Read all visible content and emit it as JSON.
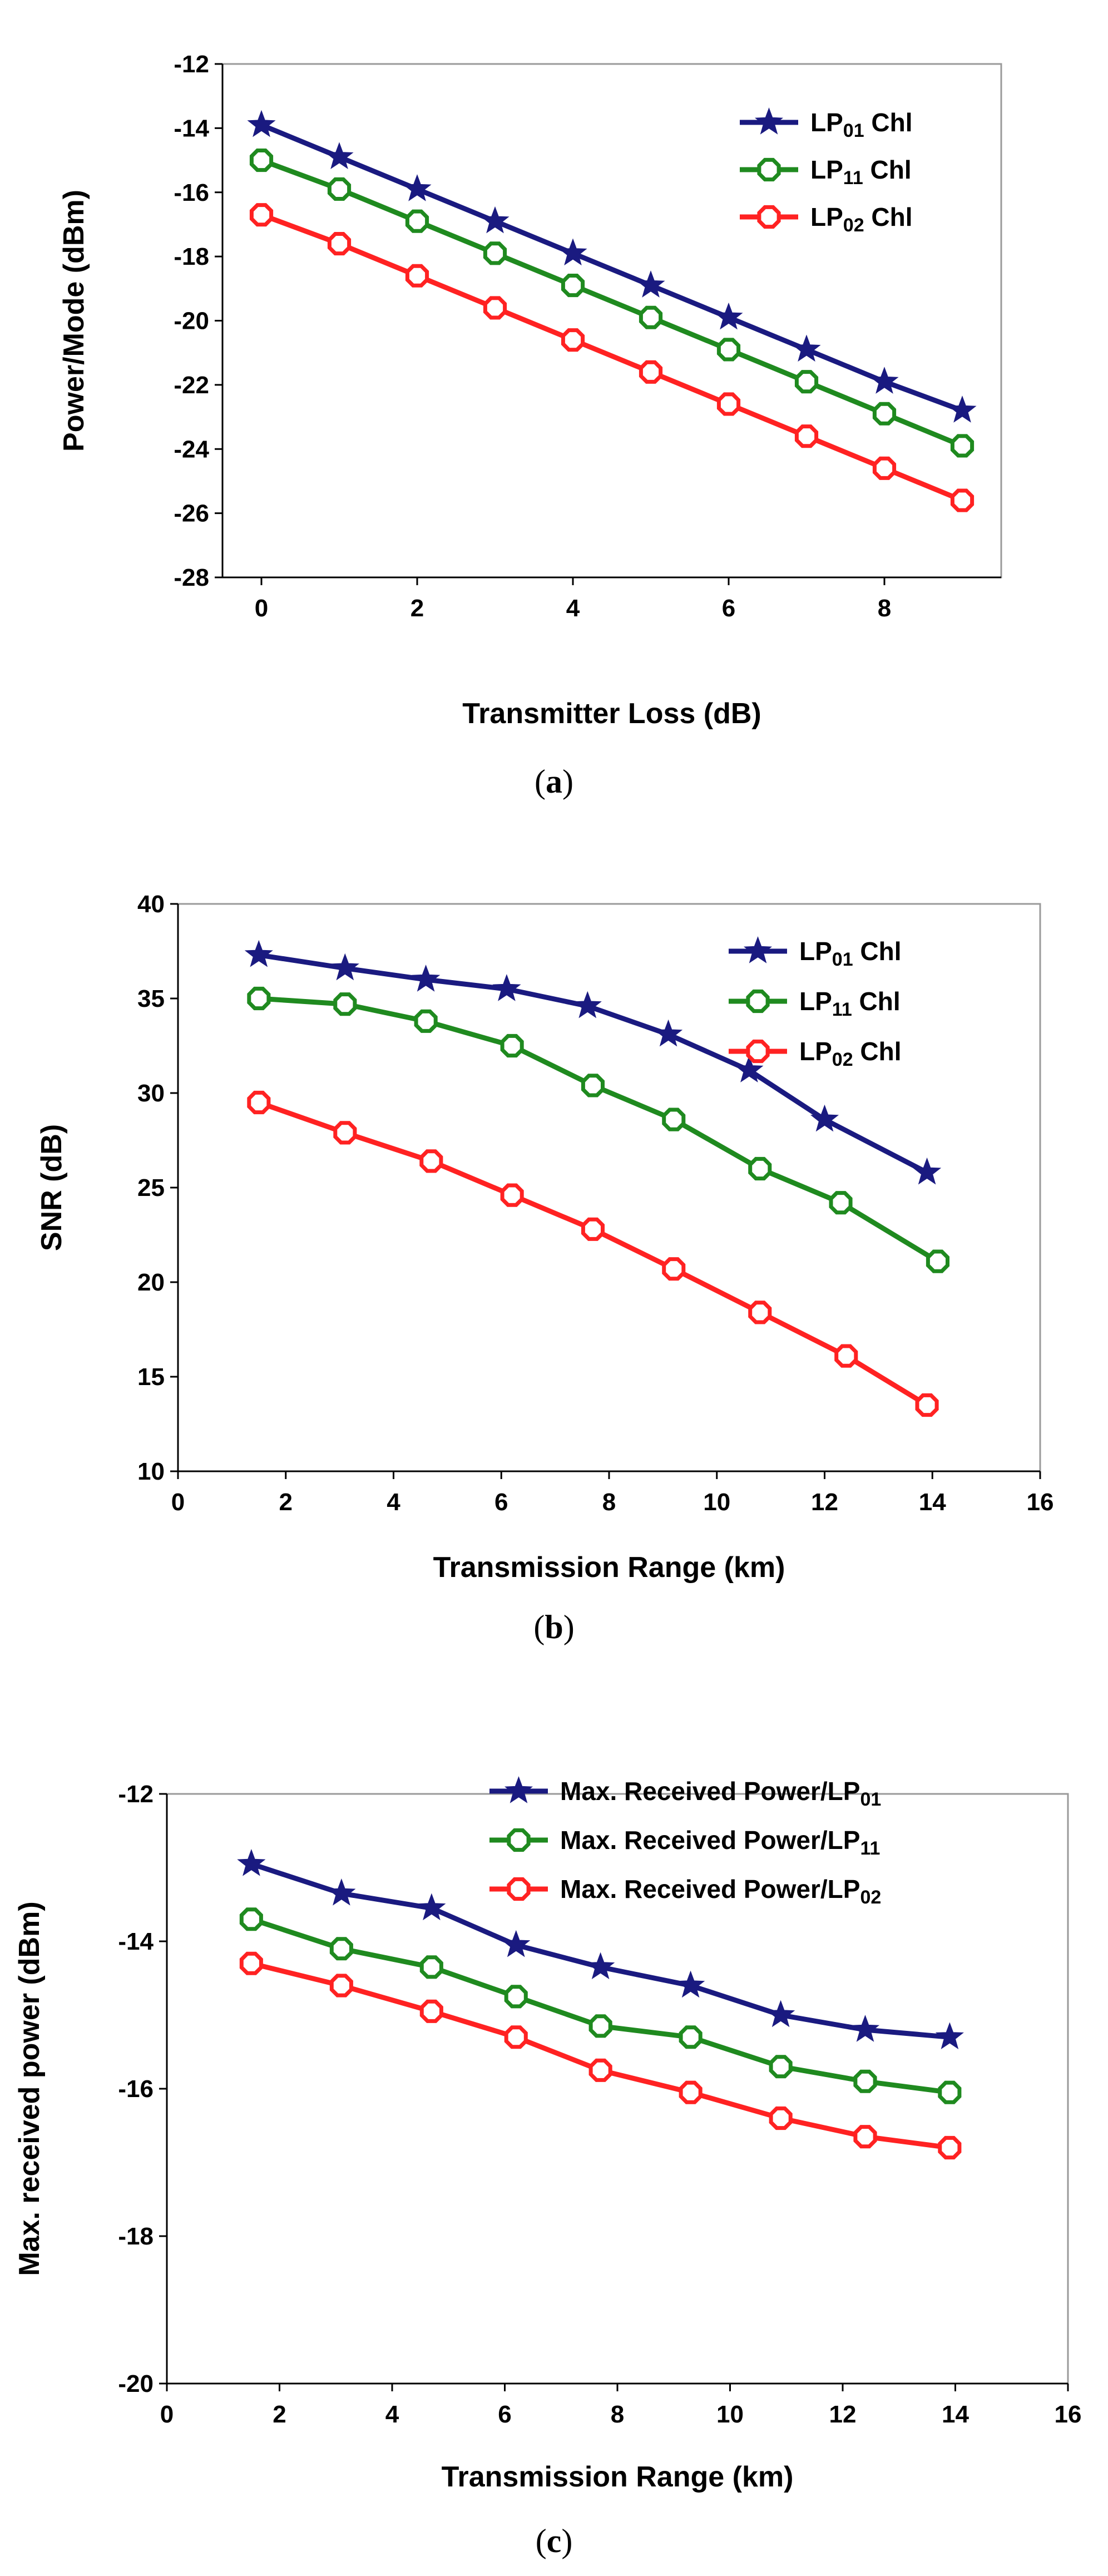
{
  "colors": {
    "LP01": "#1a1a80",
    "LP11": "#1f8a1f",
    "LP02": "#ff2222"
  },
  "chart_data": [
    {
      "id": "a",
      "type": "line",
      "sub_label": "a",
      "xlabel": "Transmitter Loss (dB)",
      "ylabel": "Power/Mode (dBm)",
      "xlim": [
        -0.5,
        9.5
      ],
      "ylim": [
        -28,
        -12
      ],
      "xticks": [
        0,
        2,
        4,
        6,
        8
      ],
      "yticks": [
        -28,
        -26,
        -24,
        -22,
        -20,
        -18,
        -16,
        -14,
        -12
      ],
      "legend_position": "top-right",
      "series": [
        {
          "name": "LP01 Chl",
          "legend_base": "LP",
          "legend_sub": "01",
          "legend_suffix": " Chl",
          "color_key": "LP01",
          "marker": "star",
          "x": [
            0,
            1,
            2,
            3,
            4,
            5,
            6,
            7,
            8,
            9
          ],
          "y": [
            -13.9,
            -14.9,
            -15.9,
            -16.9,
            -17.9,
            -18.9,
            -19.9,
            -20.9,
            -21.9,
            -22.8
          ]
        },
        {
          "name": "LP11 Chl",
          "legend_base": "LP",
          "legend_sub": "11",
          "legend_suffix": " Chl",
          "color_key": "LP11",
          "marker": "octagon",
          "x": [
            0,
            1,
            2,
            3,
            4,
            5,
            6,
            7,
            8,
            9
          ],
          "y": [
            -15.0,
            -15.9,
            -16.9,
            -17.9,
            -18.9,
            -19.9,
            -20.9,
            -21.9,
            -22.9,
            -23.9
          ]
        },
        {
          "name": "LP02 Chl",
          "legend_base": "LP",
          "legend_sub": "02",
          "legend_suffix": " Chl",
          "color_key": "LP02",
          "marker": "octagon",
          "x": [
            0,
            1,
            2,
            3,
            4,
            5,
            6,
            7,
            8,
            9
          ],
          "y": [
            -16.7,
            -17.6,
            -18.6,
            -19.6,
            -20.6,
            -21.6,
            -22.6,
            -23.6,
            -24.6,
            -25.6
          ]
        }
      ]
    },
    {
      "id": "b",
      "type": "line",
      "sub_label": "b",
      "xlabel": "Transmission Range (km)",
      "ylabel": "SNR (dB)",
      "xlim": [
        0,
        16
      ],
      "ylim": [
        10,
        40
      ],
      "xticks": [
        0,
        2,
        4,
        6,
        8,
        10,
        12,
        14,
        16
      ],
      "yticks": [
        10,
        15,
        20,
        25,
        30,
        35,
        40
      ],
      "legend_position": "top-right",
      "series": [
        {
          "name": "LP01 Chl",
          "legend_base": "LP",
          "legend_sub": "01",
          "legend_suffix": " Chl",
          "color_key": "LP01",
          "marker": "star",
          "x": [
            1.5,
            3.1,
            4.6,
            6.1,
            7.6,
            9.1,
            10.6,
            12.0,
            13.9
          ],
          "y": [
            37.3,
            36.6,
            36.0,
            35.5,
            34.6,
            33.1,
            31.2,
            28.6,
            25.8
          ]
        },
        {
          "name": "LP11 Chl",
          "legend_base": "LP",
          "legend_sub": "11",
          "legend_suffix": " Chl",
          "color_key": "LP11",
          "marker": "octagon",
          "x": [
            1.5,
            3.1,
            4.6,
            6.2,
            7.7,
            9.2,
            10.8,
            12.3,
            14.1
          ],
          "y": [
            35.0,
            34.7,
            33.8,
            32.5,
            30.4,
            28.6,
            26.0,
            24.2,
            21.1
          ]
        },
        {
          "name": "LP02 Chl",
          "legend_base": "LP",
          "legend_sub": "02",
          "legend_suffix": " Chl",
          "color_key": "LP02",
          "marker": "octagon",
          "x": [
            1.5,
            3.1,
            4.7,
            6.2,
            7.7,
            9.2,
            10.8,
            12.4,
            13.9
          ],
          "y": [
            29.5,
            27.9,
            26.4,
            24.6,
            22.8,
            20.7,
            18.4,
            16.1,
            13.5
          ]
        }
      ]
    },
    {
      "id": "c",
      "type": "line",
      "sub_label": "c",
      "xlabel": "Transmission Range (km)",
      "ylabel": "Max. received power (dBm)",
      "xlim": [
        0,
        16
      ],
      "ylim": [
        -20,
        -12
      ],
      "xticks": [
        0,
        2,
        4,
        6,
        8,
        10,
        12,
        14,
        16
      ],
      "yticks": [
        -20,
        -18,
        -16,
        -14,
        -12
      ],
      "legend_position": "top-right",
      "series": [
        {
          "name": "Max. Received Power/LP01",
          "legend_base": "Max. Received Power/LP",
          "legend_sub": "01",
          "legend_suffix": "",
          "color_key": "LP01",
          "marker": "star",
          "x": [
            1.5,
            3.1,
            4.7,
            6.2,
            7.7,
            9.3,
            10.9,
            12.4,
            13.9
          ],
          "y": [
            -12.95,
            -13.35,
            -13.55,
            -14.05,
            -14.35,
            -14.6,
            -15.0,
            -15.2,
            -15.3
          ]
        },
        {
          "name": "Max. Received Power/LP11",
          "legend_base": "Max. Received Power/LP",
          "legend_sub": "11",
          "legend_suffix": "",
          "color_key": "LP11",
          "marker": "octagon",
          "x": [
            1.5,
            3.1,
            4.7,
            6.2,
            7.7,
            9.3,
            10.9,
            12.4,
            13.9
          ],
          "y": [
            -13.7,
            -14.1,
            -14.35,
            -14.75,
            -15.15,
            -15.3,
            -15.7,
            -15.9,
            -16.05
          ]
        },
        {
          "name": "Max. Received Power/LP02",
          "legend_base": "Max. Received Power/LP",
          "legend_sub": "02",
          "legend_suffix": "",
          "color_key": "LP02",
          "marker": "octagon",
          "x": [
            1.5,
            3.1,
            4.7,
            6.2,
            7.7,
            9.3,
            10.9,
            12.4,
            13.9
          ],
          "y": [
            -14.3,
            -14.6,
            -14.95,
            -15.3,
            -15.75,
            -16.05,
            -16.4,
            -16.65,
            -16.8
          ]
        }
      ]
    }
  ]
}
